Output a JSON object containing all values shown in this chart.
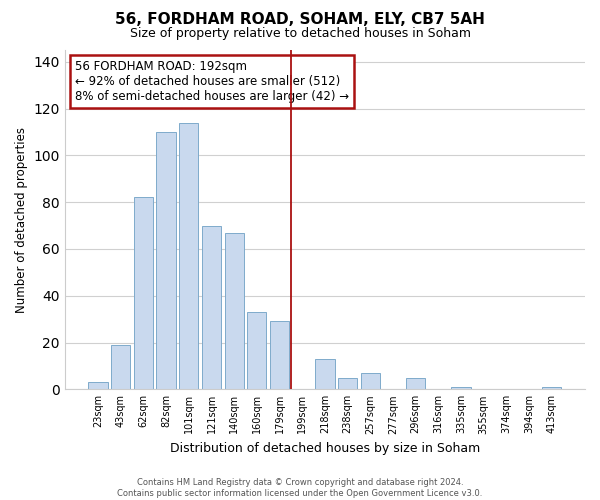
{
  "title": "56, FORDHAM ROAD, SOHAM, ELY, CB7 5AH",
  "subtitle": "Size of property relative to detached houses in Soham",
  "xlabel": "Distribution of detached houses by size in Soham",
  "ylabel": "Number of detached properties",
  "bar_labels": [
    "23sqm",
    "43sqm",
    "62sqm",
    "82sqm",
    "101sqm",
    "121sqm",
    "140sqm",
    "160sqm",
    "179sqm",
    "199sqm",
    "218sqm",
    "238sqm",
    "257sqm",
    "277sqm",
    "296sqm",
    "316sqm",
    "335sqm",
    "355sqm",
    "374sqm",
    "394sqm",
    "413sqm"
  ],
  "bar_values": [
    3,
    19,
    82,
    110,
    114,
    70,
    67,
    33,
    29,
    0,
    13,
    5,
    7,
    0,
    5,
    0,
    1,
    0,
    0,
    0,
    1
  ],
  "bar_color": "#c9d9ee",
  "bar_edge_color": "#7eaacb",
  "reference_line_color": "#aa1111",
  "annotation_title": "56 FORDHAM ROAD: 192sqm",
  "annotation_line1": "← 92% of detached houses are smaller (512)",
  "annotation_line2": "8% of semi-detached houses are larger (42) →",
  "annotation_box_edge_color": "#aa1111",
  "ylim": [
    0,
    145
  ],
  "yticks": [
    0,
    20,
    40,
    60,
    80,
    100,
    120,
    140
  ],
  "footer_line1": "Contains HM Land Registry data © Crown copyright and database right 2024.",
  "footer_line2": "Contains public sector information licensed under the Open Government Licence v3.0.",
  "background_color": "#ffffff",
  "grid_color": "#d0d0d0",
  "ref_line_x": 8.5
}
